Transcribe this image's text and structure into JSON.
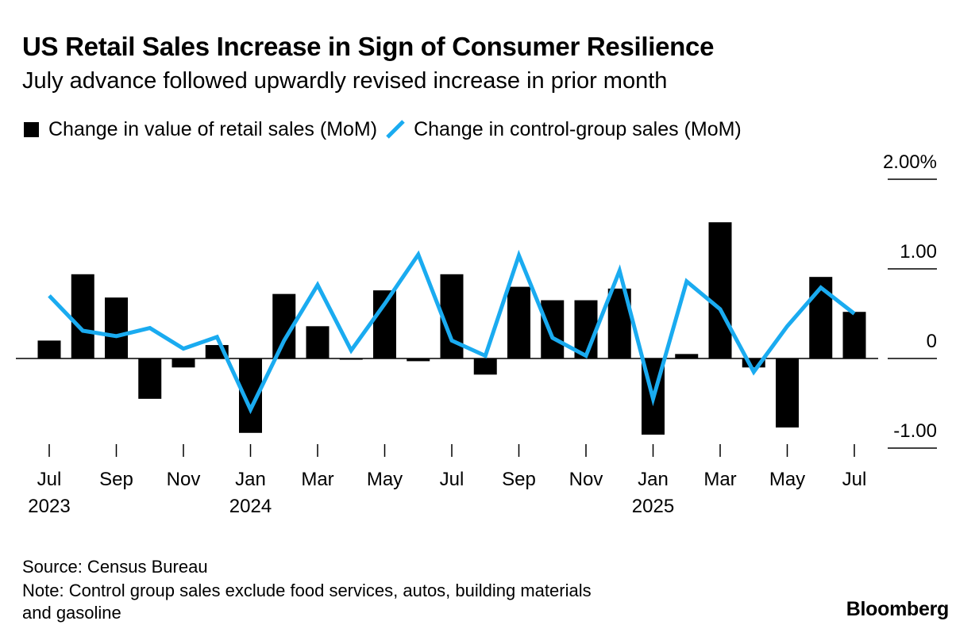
{
  "header": {
    "title": "US Retail Sales Increase in Sign of Consumer Resilience",
    "subtitle": "July advance followed upwardly revised increase in prior month"
  },
  "legend": {
    "bar_label": "Change in value of retail sales (MoM)",
    "line_label": "Change in control-group sales (MoM)"
  },
  "footer": {
    "source": "Source: Census Bureau",
    "note_line1": "Note: Control group sales exclude food services, autos, building materials",
    "note_line2": "and gasoline",
    "brand": "Bloomberg"
  },
  "chart_data": {
    "type": "bar",
    "months": [
      "Jul 2023",
      "Aug 2023",
      "Sep 2023",
      "Oct 2023",
      "Nov 2023",
      "Dec 2023",
      "Jan 2024",
      "Feb 2024",
      "Mar 2024",
      "Apr 2024",
      "May 2024",
      "Jun 2024",
      "Jul 2024",
      "Aug 2024",
      "Sep 2024",
      "Oct 2024",
      "Nov 2024",
      "Dec 2024",
      "Jan 2025",
      "Feb 2025",
      "Mar 2025",
      "Apr 2025",
      "May 2025",
      "Jun 2025",
      "Jul 2025"
    ],
    "series": [
      {
        "name": "Change in value of retail sales (MoM)",
        "type": "bar",
        "color": "#000000",
        "values": [
          0.2,
          0.94,
          0.68,
          -0.45,
          -0.1,
          0.15,
          -0.83,
          0.72,
          0.36,
          -0.01,
          0.76,
          -0.03,
          0.94,
          -0.18,
          0.8,
          0.65,
          0.65,
          0.78,
          -0.85,
          0.05,
          1.52,
          -0.1,
          -0.77,
          0.91,
          0.52
        ]
      },
      {
        "name": "Change in control-group sales (MoM)",
        "type": "line",
        "color": "#1aabf0",
        "values": [
          0.7,
          0.31,
          0.25,
          0.34,
          0.11,
          0.24,
          -0.57,
          0.2,
          0.82,
          0.09,
          0.61,
          1.16,
          0.2,
          0.03,
          1.15,
          0.23,
          0.03,
          0.98,
          -0.45,
          0.86,
          0.55,
          -0.15,
          0.36,
          0.79,
          0.5
        ]
      }
    ],
    "x_tick_labels": [
      {
        "index": 0,
        "month": "Jul",
        "year": "2023"
      },
      {
        "index": 2,
        "month": "Sep",
        "year": ""
      },
      {
        "index": 4,
        "month": "Nov",
        "year": ""
      },
      {
        "index": 6,
        "month": "Jan",
        "year": "2024"
      },
      {
        "index": 8,
        "month": "Mar",
        "year": ""
      },
      {
        "index": 10,
        "month": "May",
        "year": ""
      },
      {
        "index": 12,
        "month": "Jul",
        "year": ""
      },
      {
        "index": 14,
        "month": "Sep",
        "year": ""
      },
      {
        "index": 16,
        "month": "Nov",
        "year": ""
      },
      {
        "index": 18,
        "month": "Jan",
        "year": "2025"
      },
      {
        "index": 20,
        "month": "Mar",
        "year": ""
      },
      {
        "index": 22,
        "month": "May",
        "year": ""
      },
      {
        "index": 24,
        "month": "Jul",
        "year": ""
      }
    ],
    "y_ticks": [
      {
        "value": 2,
        "label": "2.00%"
      },
      {
        "value": 1,
        "label": "1.00"
      },
      {
        "value": 0,
        "label": "0"
      },
      {
        "value": -1,
        "label": "-1.00"
      }
    ],
    "ylim": [
      -1,
      2
    ],
    "y_axis_position": "right",
    "legend_position": "top-left",
    "grid": false
  }
}
